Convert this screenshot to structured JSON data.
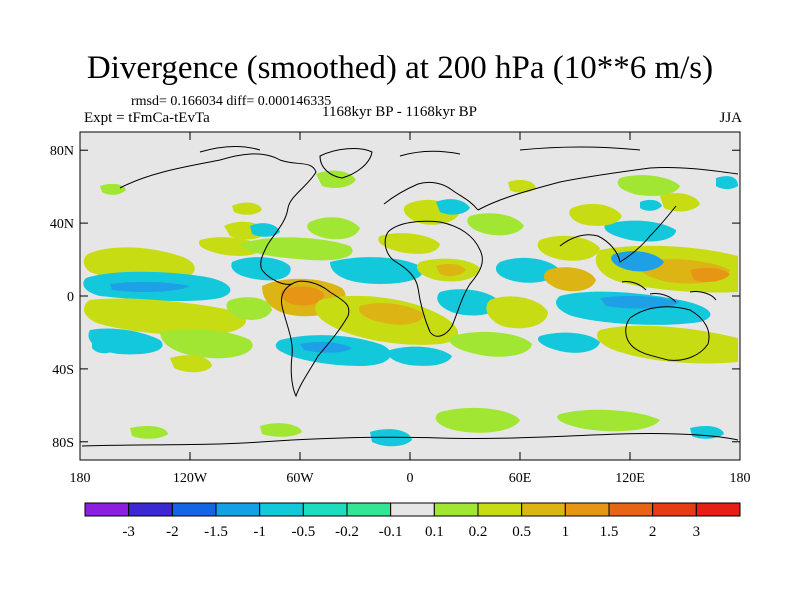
{
  "title": "Divergence (smoothed) at 200 hPa (10**6 m/s)",
  "stats": "rmsd= 0.166034 diff= 0.000146335",
  "experiment": "Expt = tFmCa-tEvTa",
  "period": "1168kyr BP - 1168kyr BP",
  "season": "JJA",
  "map": {
    "lat_ticks": [
      {
        "value": 80,
        "label": "80N"
      },
      {
        "value": 40,
        "label": "40N"
      },
      {
        "value": 0,
        "label": "0"
      },
      {
        "value": -40,
        "label": "40S"
      },
      {
        "value": -80,
        "label": "80S"
      }
    ],
    "lon_ticks": [
      {
        "value": -180,
        "label": "180"
      },
      {
        "value": -120,
        "label": "120W"
      },
      {
        "value": -60,
        "label": "60W"
      },
      {
        "value": 0,
        "label": "0"
      },
      {
        "value": 60,
        "label": "60E"
      },
      {
        "value": 120,
        "label": "120E"
      },
      {
        "value": 180,
        "label": "180"
      }
    ],
    "background_color": "#e6e6e6"
  },
  "colorbar": {
    "colors": [
      "#8c1ee0",
      "#3c28d2",
      "#1464e6",
      "#14a0e6",
      "#14c8dc",
      "#1edcbe",
      "#32e696",
      "#e6e6e6",
      "#a0e632",
      "#c8dc14",
      "#dcb414",
      "#e69614",
      "#e66414",
      "#e63c14",
      "#e61e14"
    ],
    "labels": [
      "-3",
      "-2",
      "-1.5",
      "-1",
      "-0.5",
      "-0.2",
      "-0.1",
      "0.1",
      "0.2",
      "0.5",
      "1",
      "1.5",
      "2",
      "3"
    ]
  }
}
